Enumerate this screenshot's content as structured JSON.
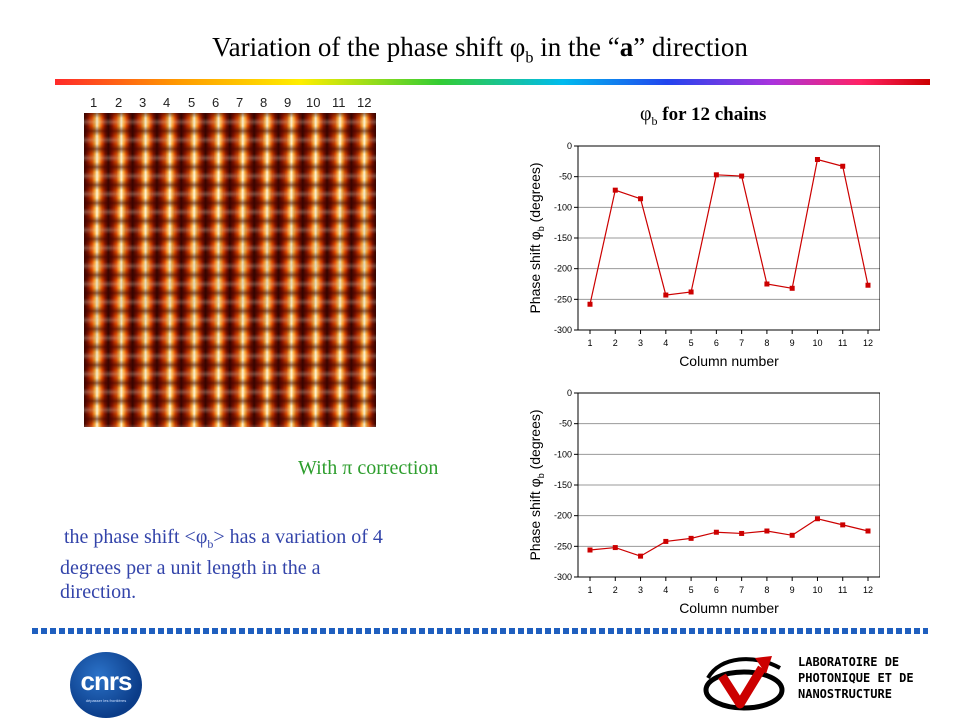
{
  "slide": {
    "title_part1": "Variation of the phase shift ",
    "title_phi": "φ",
    "title_sub": "b",
    "title_part2": "  in the “",
    "title_a": "a",
    "title_part3": "” direction"
  },
  "stm_image": {
    "chain_numbers": [
      "1",
      "2",
      "3",
      "4",
      "5",
      "6",
      "7",
      "8",
      "9",
      "10",
      "11",
      "12"
    ]
  },
  "chart_heading": {
    "phi": "φ",
    "sub": "b",
    "text": " for 12 chains"
  },
  "correction_label": {
    "prefix": "With ",
    "pi": "π",
    "suffix": " correction"
  },
  "description": {
    "part1": " the phase shift <",
    "phi": "φ",
    "sub": "b",
    "part2": "> has a variation of 4",
    "line2": "degrees per a unit length  in the a",
    "line3": "direction."
  },
  "chart_data": [
    {
      "type": "line",
      "ylabel_prefix": "Phase shift ",
      "ylabel_phi": "φ",
      "ylabel_sub": "b",
      "ylabel_suffix": " (degrees)",
      "xlabel": "Column number",
      "categories": [
        "1",
        "2",
        "3",
        "4",
        "5",
        "6",
        "7",
        "8",
        "9",
        "10",
        "11",
        "12"
      ],
      "ylim": [
        -300,
        0
      ],
      "yticks": [
        "0",
        "-50",
        "-100",
        "-150",
        "-200",
        "-250",
        "-300"
      ],
      "grid": true,
      "series": [
        {
          "color": "#cc0000",
          "values": [
            -258,
            -72,
            -86,
            -243,
            -238,
            -47,
            -49,
            -225,
            -232,
            -22,
            -33,
            -227
          ]
        }
      ]
    },
    {
      "type": "line",
      "ylabel_prefix": "Phase shift ",
      "ylabel_phi": "φ",
      "ylabel_sub": "b",
      "ylabel_suffix": " (degrees)",
      "xlabel": "Column number",
      "categories": [
        "1",
        "2",
        "3",
        "4",
        "5",
        "6",
        "7",
        "8",
        "9",
        "10",
        "11",
        "12"
      ],
      "ylim": [
        -300,
        0
      ],
      "yticks": [
        "0",
        "-50",
        "-100",
        "-150",
        "-200",
        "-250",
        "-300"
      ],
      "grid": true,
      "series": [
        {
          "color": "#cc0000",
          "values": [
            -256,
            -252,
            -266,
            -242,
            -237,
            -227,
            -229,
            -225,
            -232,
            -205,
            -215,
            -225
          ]
        }
      ]
    }
  ],
  "logos": {
    "cnrs": "cnrs",
    "cnrs_tagline": "dépasser les frontières",
    "lpn_line1": "LABORATOIRE DE",
    "lpn_line2": "PHOTONIQUE ET DE",
    "lpn_line3": "NANOSTRUCTURE"
  }
}
